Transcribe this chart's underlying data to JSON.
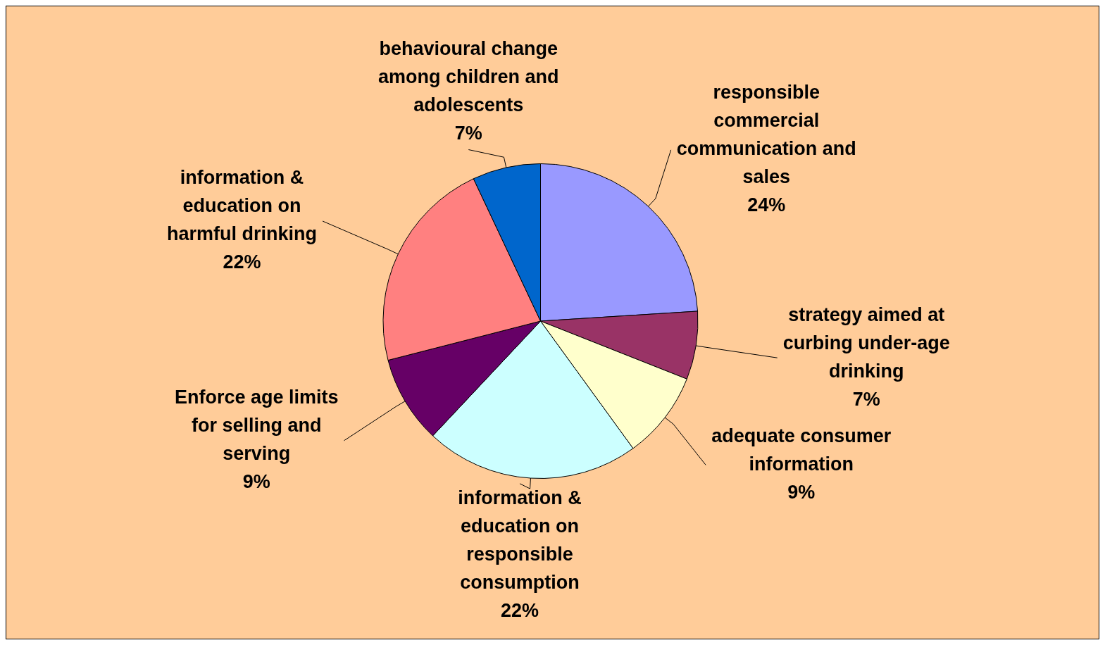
{
  "chart_data": {
    "type": "pie",
    "categories": [
      "responsible commercial communication and sales",
      "strategy aimed at curbing under-age drinking",
      "adequate consumer information",
      "information & education on responsible consumption",
      "Enforce age limits for selling and serving",
      "information & education on harmful drinking",
      "behavioural change among children and adolescents"
    ],
    "values": [
      24,
      7,
      9,
      22,
      9,
      22,
      7
    ],
    "value_labels": [
      "24%",
      "7%",
      "9%",
      "22%",
      "9%",
      "22%",
      "7%"
    ],
    "colors": [
      "#9999ff",
      "#993366",
      "#ffffcc",
      "#ccffff",
      "#660066",
      "#ff8080",
      "#0066cc"
    ],
    "legend": false
  }
}
